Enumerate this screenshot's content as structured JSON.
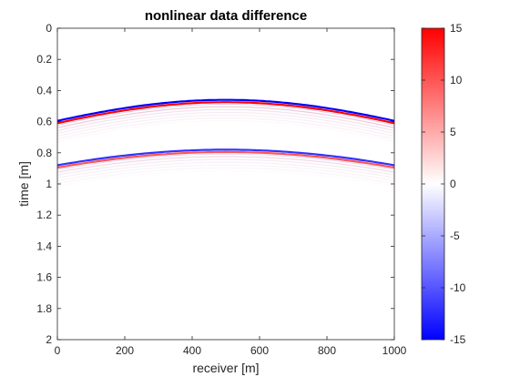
{
  "chart_data": {
    "type": "heatmap",
    "title": "nonlinear data difference",
    "xlabel": "receiver [m]",
    "ylabel": "time [m]",
    "xlim": [
      0,
      1000
    ],
    "ylim": [
      2,
      0
    ],
    "x_ticks": [
      0,
      200,
      400,
      600,
      800,
      1000
    ],
    "y_ticks": [
      0,
      0.2,
      0.4,
      0.6,
      0.8,
      1,
      1.2,
      1.4,
      1.6,
      1.8,
      2
    ],
    "x_tick_labels": [
      "0",
      "200",
      "400",
      "600",
      "800",
      "1000"
    ],
    "y_tick_labels": [
      "0",
      "0.2",
      "0.4",
      "0.6",
      "0.8",
      "1",
      "1.2",
      "1.4",
      "1.6",
      "1.8",
      "2"
    ],
    "colorbar": {
      "limits": [
        -15,
        15
      ],
      "ticks": [
        15,
        10,
        5,
        0,
        -5,
        -10,
        -15
      ],
      "tick_labels": [
        "15",
        "10",
        "5",
        "0",
        "-5",
        "-10",
        "-15"
      ],
      "colormap": "blue-white-red",
      "low_color": "#0000ff",
      "mid_color": "#ffffff",
      "high_color": "#ff0000"
    },
    "events": [
      {
        "name_hidden": true,
        "apex_x": 500,
        "apex_t": 0.46,
        "edge_t": 0.595,
        "peak_amplitude": -15
      },
      {
        "name_hidden": true,
        "apex_x": 500,
        "apex_t": 0.475,
        "edge_t": 0.61,
        "peak_amplitude": 15
      },
      {
        "name_hidden": true,
        "apex_x": 500,
        "apex_t": 0.78,
        "edge_t": 0.88,
        "peak_amplitude": -12
      },
      {
        "name_hidden": true,
        "apex_x": 500,
        "apex_t": 0.795,
        "edge_t": 0.895,
        "peak_amplitude": 10
      }
    ]
  }
}
